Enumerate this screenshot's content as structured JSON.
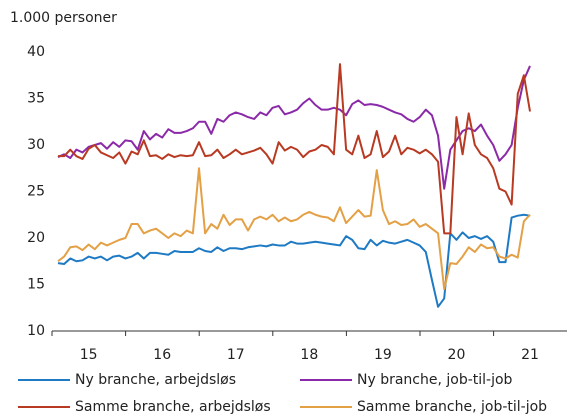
{
  "chart_data": {
    "type": "line",
    "y_axis_label": "1.000 personer",
    "categories": [
      null,
      null,
      null,
      null,
      null,
      "15",
      null,
      null,
      null,
      null,
      null,
      null,
      null,
      null,
      null,
      null,
      null,
      "16",
      null,
      null,
      null,
      null,
      null,
      null,
      null,
      null,
      null,
      null,
      null,
      "17",
      null,
      null,
      null,
      null,
      null,
      null,
      null,
      null,
      null,
      null,
      null,
      "18",
      null,
      null,
      null,
      null,
      null,
      null,
      null,
      null,
      null,
      null,
      null,
      "19",
      null,
      null,
      null,
      null,
      null,
      null,
      null,
      null,
      null,
      null,
      null,
      "20",
      null,
      null,
      null,
      null,
      null,
      null,
      null,
      null,
      null,
      null,
      null,
      "21"
    ],
    "series": [
      {
        "name": "Ny branche, arbejdsløs",
        "color": "#1f7ac4",
        "values": [
          17.3,
          17.2,
          17.8,
          17.5,
          17.6,
          18,
          17.8,
          18,
          17.6,
          18,
          18.1,
          17.8,
          18,
          18.4,
          17.8,
          18.4,
          18.4,
          18.3,
          18.2,
          18.6,
          18.5,
          18.5,
          18.5,
          18.9,
          18.6,
          18.5,
          19,
          18.6,
          18.9,
          18.9,
          18.8,
          19,
          19.1,
          19.2,
          19.1,
          19.3,
          19.2,
          19.2,
          19.6,
          19.4,
          19.4,
          19.5,
          19.6,
          19.5,
          19.4,
          19.3,
          19.2,
          20.2,
          19.8,
          18.9,
          18.8,
          19.8,
          19.2,
          19.7,
          19.5,
          19.4,
          19.6,
          19.8,
          19.5,
          19.2,
          18.5,
          15.5,
          12.6,
          13.5,
          20.5,
          19.8,
          20.6,
          20,
          20.2,
          19.9,
          20.2,
          19.6,
          17.4,
          17.4,
          22.2,
          22.4,
          22.5,
          22.4
        ]
      },
      {
        "name": "Ny branche, job-til-job",
        "color": "#8b2aa8",
        "values": [
          28.7,
          29,
          28.6,
          29.5,
          29.2,
          29.8,
          30,
          30.2,
          29.6,
          30.3,
          29.8,
          30.5,
          30.4,
          29.5,
          31.5,
          30.6,
          31.2,
          30.8,
          31.7,
          31.3,
          31.3,
          31.5,
          31.8,
          32.5,
          32.5,
          31.2,
          32.8,
          32.5,
          33.2,
          33.5,
          33.3,
          33,
          32.8,
          33.5,
          33.2,
          34,
          34.2,
          33.3,
          33.5,
          33.8,
          34.5,
          35,
          34.3,
          33.8,
          33.8,
          34,
          33.8,
          33.2,
          34.4,
          34.8,
          34.3,
          34.4,
          34.3,
          34.1,
          33.8,
          33.5,
          33.3,
          32.8,
          32.5,
          33,
          33.8,
          33.2,
          31,
          25.3,
          29.5,
          30.5,
          31.5,
          31.8,
          31.5,
          32.2,
          31,
          30,
          28.3,
          29,
          30,
          34,
          37,
          38.5
        ]
      },
      {
        "name": "Samme branche, arbejdsløs",
        "color": "#b83a22",
        "values": [
          28.8,
          28.8,
          29.5,
          28.8,
          28.5,
          29.6,
          30,
          29.2,
          28.9,
          28.6,
          29.2,
          28,
          29.3,
          29,
          30.5,
          28.8,
          28.9,
          28.5,
          29,
          28.7,
          28.9,
          28.8,
          28.9,
          30.3,
          28.8,
          28.9,
          29.5,
          28.6,
          29,
          29.5,
          29,
          29.2,
          29.4,
          29.7,
          29,
          28,
          30.3,
          29.4,
          29.8,
          29.5,
          28.7,
          29.3,
          29.5,
          30,
          29.8,
          29,
          38.7,
          29.5,
          29,
          31,
          28.6,
          29,
          31.5,
          28.7,
          29.3,
          31,
          29,
          29.7,
          29.5,
          29.1,
          29.5,
          29,
          28.2,
          20.5,
          20.5,
          33,
          29,
          33.4,
          30,
          29,
          28.6,
          27.5,
          25.3,
          25,
          23.6,
          35.5,
          37.5,
          33.6
        ]
      },
      {
        "name": "Samme branche, job-til-job",
        "color": "#e4a045",
        "values": [
          17.5,
          18,
          19,
          19.1,
          18.7,
          19.3,
          18.8,
          19.5,
          19.2,
          19.5,
          19.8,
          20,
          21.5,
          21.5,
          20.5,
          20.8,
          21,
          20.5,
          20,
          20.5,
          20.2,
          20.8,
          20.5,
          27.5,
          20.5,
          21.5,
          21,
          22.5,
          21.4,
          22,
          22,
          20.8,
          22,
          22.3,
          22,
          22.5,
          21.8,
          22.2,
          21.8,
          22,
          22.5,
          22.8,
          22.5,
          22.3,
          22.2,
          21.8,
          23.3,
          21.6,
          22.3,
          23,
          22.3,
          22.4,
          27.3,
          23,
          21.5,
          21.8,
          21.4,
          21.5,
          22,
          21.2,
          21.5,
          21,
          20.5,
          14.5,
          17.3,
          17.2,
          18,
          19,
          18.5,
          19.3,
          18.9,
          19,
          18,
          17.8,
          18.2,
          17.9,
          21.8,
          22.5
        ]
      }
    ],
    "ylim": [
      10,
      40
    ],
    "yticks": [
      10,
      15,
      20,
      25,
      30,
      35,
      40
    ],
    "grid": false
  }
}
